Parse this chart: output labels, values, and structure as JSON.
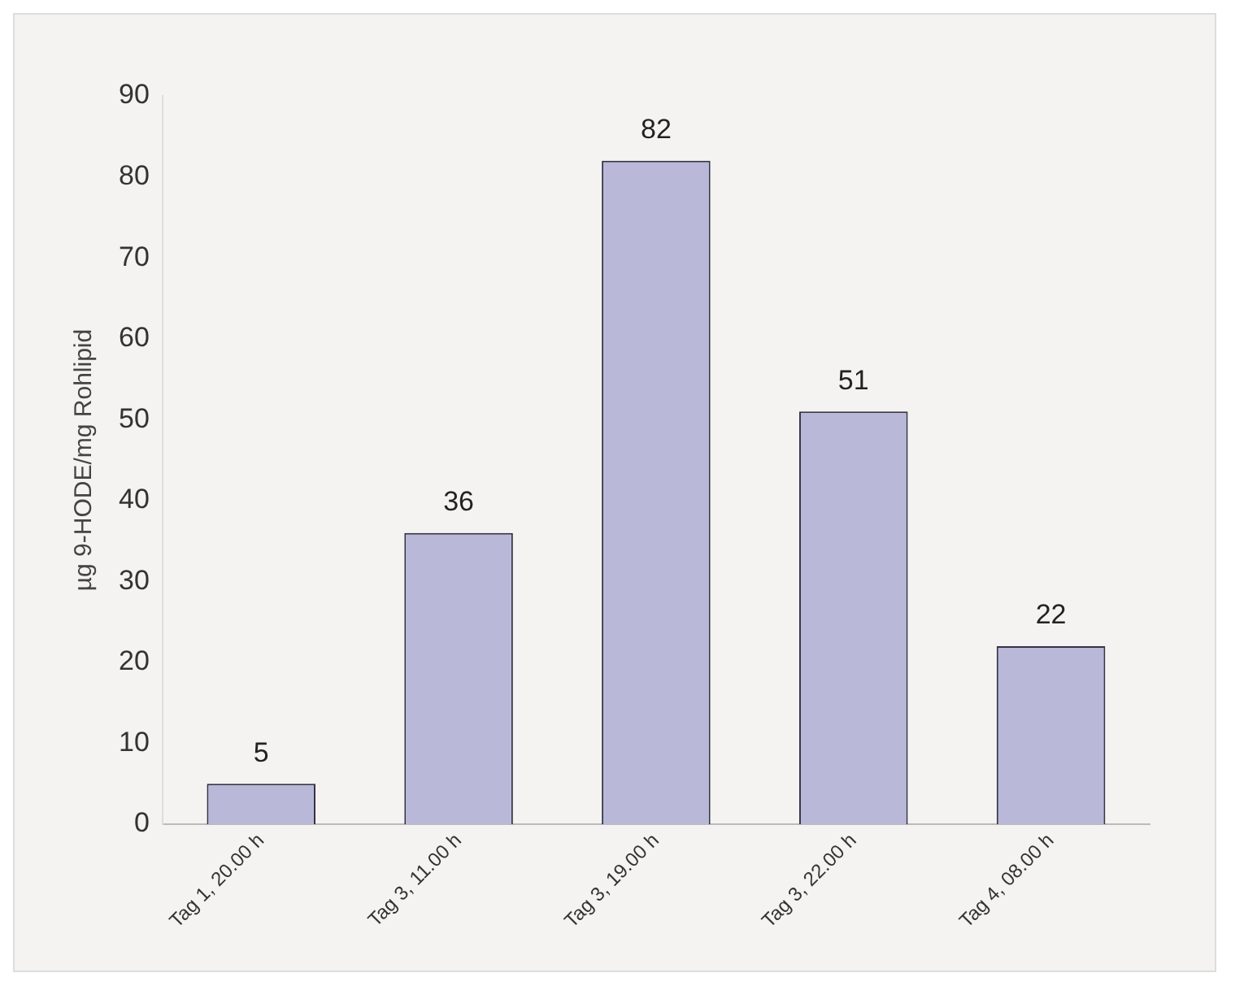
{
  "chart_data": {
    "type": "bar",
    "ylabel": "µg 9-HODE/mg Rohlipid",
    "categories": [
      "Tag 1, 20.00 h",
      "Tag 3, 11.00 h",
      "Tag 3, 19.00 h",
      "Tag 3, 22.00 h",
      "Tag 4, 08.00 h"
    ],
    "values": [
      5,
      36,
      82,
      51,
      22
    ],
    "color": "#b9b8d9",
    "ylim": [
      0,
      90
    ],
    "yticks": [
      0,
      10,
      20,
      30,
      40,
      50,
      60,
      70,
      80,
      90
    ],
    "grid": false,
    "legend": false,
    "data_labels": true
  }
}
